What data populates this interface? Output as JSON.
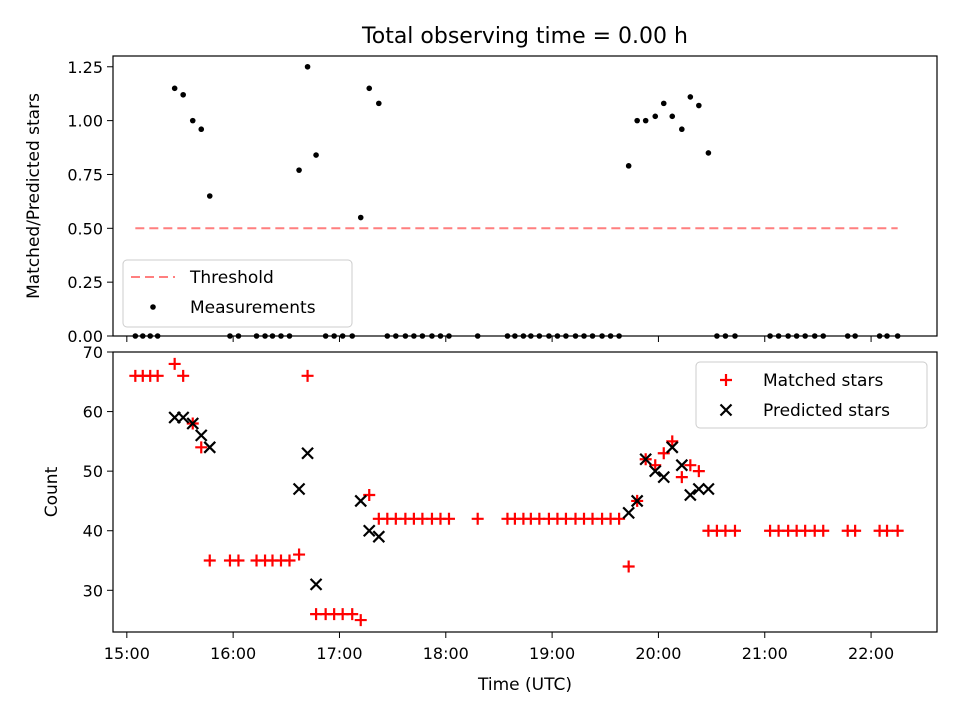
{
  "colors": {
    "threshold": "#ff7f7f",
    "measurement": "#000000",
    "matched": "#ff0000",
    "predicted": "#000000"
  },
  "chart_data": [
    {
      "type": "scatter",
      "title": "Total observing time = 0.00 h",
      "xlabel": "",
      "ylabel": "Matched/Predicted stars",
      "xlim": [
        14.87,
        22.62
      ],
      "ylim": [
        0,
        1.3
      ],
      "yticks": [
        0,
        0.25,
        0.5,
        0.75,
        1.0,
        1.25
      ],
      "ytick_labels": [
        "0.00",
        "0.25",
        "0.50",
        "0.75",
        "1.00",
        "1.25"
      ],
      "legend": {
        "placement": "lower-left",
        "entries": [
          "Threshold",
          "Measurements"
        ]
      },
      "threshold": {
        "name": "Threshold",
        "value": 0.5,
        "x_range": [
          15.08,
          22.25
        ]
      },
      "series": [
        {
          "name": "Measurements",
          "x": [
            15.08,
            15.15,
            15.22,
            15.29,
            15.45,
            15.53,
            15.62,
            15.7,
            15.78,
            15.97,
            16.05,
            16.22,
            16.3,
            16.37,
            16.45,
            16.53,
            16.62,
            16.7,
            16.78,
            16.87,
            16.95,
            17.03,
            17.12,
            17.2,
            17.28,
            17.37,
            17.45,
            17.53,
            17.62,
            17.7,
            17.78,
            17.87,
            17.95,
            18.03,
            18.3,
            18.58,
            18.65,
            18.73,
            18.8,
            18.88,
            18.97,
            19.05,
            19.13,
            19.22,
            19.3,
            19.38,
            19.47,
            19.55,
            19.63,
            19.72,
            19.8,
            19.88,
            19.97,
            20.05,
            20.13,
            20.22,
            20.3,
            20.38,
            20.47,
            20.55,
            20.63,
            20.72,
            21.05,
            21.13,
            21.22,
            21.3,
            21.38,
            21.47,
            21.55,
            21.78,
            21.85,
            22.08,
            22.15,
            22.25
          ],
          "y": [
            0,
            0,
            0,
            0,
            1.15,
            1.12,
            1.0,
            0.96,
            0.65,
            0,
            0,
            0,
            0,
            0,
            0,
            0,
            0.77,
            1.25,
            0.84,
            0,
            0,
            0,
            0,
            0.55,
            1.15,
            1.08,
            0,
            0,
            0,
            0,
            0,
            0,
            0,
            0,
            0,
            0,
            0,
            0,
            0,
            0,
            0,
            0,
            0,
            0,
            0,
            0,
            0,
            0,
            0,
            0.79,
            1.0,
            1.0,
            1.02,
            1.08,
            1.02,
            0.96,
            1.11,
            1.07,
            0.85,
            0,
            0,
            0,
            0,
            0,
            0,
            0,
            0,
            0,
            0,
            0,
            0,
            0,
            0,
            0
          ]
        }
      ]
    },
    {
      "type": "scatter",
      "title": "",
      "xlabel": "Time (UTC)",
      "ylabel": "Count",
      "xlim": [
        14.87,
        22.62
      ],
      "ylim": [
        23,
        70
      ],
      "yticks": [
        30,
        40,
        50,
        60,
        70
      ],
      "xticks": [
        15,
        16,
        17,
        18,
        19,
        20,
        21,
        22
      ],
      "xtick_labels": [
        "15:00",
        "16:00",
        "17:00",
        "18:00",
        "19:00",
        "20:00",
        "21:00",
        "22:00"
      ],
      "legend": {
        "placement": "top-right",
        "entries": [
          "Matched stars",
          "Predicted stars"
        ]
      },
      "series": [
        {
          "name": "Matched stars",
          "x": [
            15.08,
            15.15,
            15.22,
            15.29,
            15.45,
            15.53,
            15.62,
            15.7,
            15.78,
            15.97,
            16.05,
            16.22,
            16.3,
            16.37,
            16.45,
            16.53,
            16.62,
            16.7,
            16.78,
            16.87,
            16.95,
            17.03,
            17.12,
            17.2,
            17.28,
            17.37,
            17.45,
            17.53,
            17.62,
            17.7,
            17.78,
            17.87,
            17.95,
            18.03,
            18.3,
            18.58,
            18.65,
            18.73,
            18.8,
            18.88,
            18.97,
            19.05,
            19.13,
            19.22,
            19.3,
            19.38,
            19.47,
            19.55,
            19.63,
            19.72,
            19.8,
            19.88,
            19.97,
            20.05,
            20.13,
            20.22,
            20.3,
            20.38,
            20.47,
            20.55,
            20.63,
            20.72,
            21.05,
            21.13,
            21.22,
            21.3,
            21.38,
            21.47,
            21.55,
            21.78,
            21.85,
            22.08,
            22.15,
            22.25
          ],
          "y": [
            66,
            66,
            66,
            66,
            68,
            66,
            58,
            54,
            35,
            35,
            35,
            35,
            35,
            35,
            35,
            35,
            36,
            66,
            26,
            26,
            26,
            26,
            26,
            25,
            46,
            42,
            42,
            42,
            42,
            42,
            42,
            42,
            42,
            42,
            42,
            42,
            42,
            42,
            42,
            42,
            42,
            42,
            42,
            42,
            42,
            42,
            42,
            42,
            42,
            34,
            45,
            52,
            51,
            53,
            55,
            49,
            51,
            50,
            40,
            40,
            40,
            40,
            40,
            40,
            40,
            40,
            40,
            40,
            40,
            40,
            40,
            40,
            40,
            40
          ]
        },
        {
          "name": "Predicted stars",
          "x": [
            15.45,
            15.53,
            15.62,
            15.7,
            15.78,
            16.62,
            16.7,
            16.78,
            17.2,
            17.28,
            17.37,
            19.72,
            19.8,
            19.88,
            19.97,
            20.05,
            20.13,
            20.22,
            20.3,
            20.38,
            20.47
          ],
          "y": [
            59,
            59,
            58,
            56,
            54,
            47,
            53,
            31,
            45,
            40,
            39,
            43,
            45,
            52,
            50,
            49,
            54,
            51,
            46,
            47,
            47
          ]
        }
      ]
    }
  ]
}
